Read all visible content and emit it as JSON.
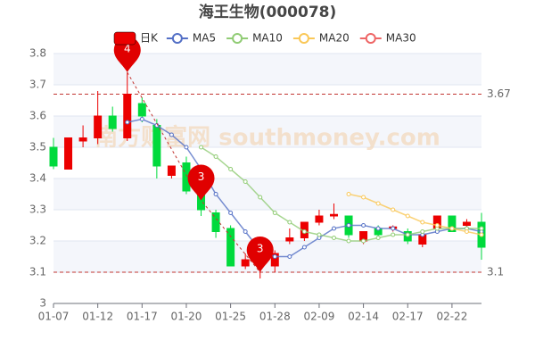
{
  "chart_data": {
    "type": "candlestick",
    "title": "海王生物(000078)",
    "watermark": "南方财富网 southmoney.com",
    "categories": [
      "01-07",
      null,
      null,
      "01-12",
      null,
      null,
      "01-17",
      null,
      null,
      "01-20",
      null,
      null,
      "01-25",
      null,
      null,
      "01-28",
      null,
      null,
      "02-09",
      null,
      null,
      "02-14",
      null,
      null,
      "02-17",
      null,
      null,
      "02-22",
      null,
      null
    ],
    "candles": {
      "name": "日K",
      "up_color": "#ec0000",
      "down_color": "#00da3c",
      "values": [
        [
          3.5,
          3.44,
          3.43,
          3.53
        ],
        [
          3.43,
          3.53,
          3.43,
          3.53
        ],
        [
          3.52,
          3.53,
          3.5,
          3.57
        ],
        [
          3.53,
          3.6,
          3.51,
          3.68
        ],
        [
          3.6,
          3.56,
          3.55,
          3.63
        ],
        [
          3.53,
          3.67,
          3.52,
          3.74
        ],
        [
          3.64,
          3.6,
          3.58,
          3.66
        ],
        [
          3.57,
          3.44,
          3.4,
          3.59
        ],
        [
          3.41,
          3.44,
          3.4,
          3.44
        ],
        [
          3.45,
          3.36,
          3.35,
          3.47
        ],
        [
          3.41,
          3.3,
          3.28,
          3.42
        ],
        [
          3.29,
          3.23,
          3.21,
          3.3
        ],
        [
          3.24,
          3.12,
          3.12,
          3.25
        ],
        [
          3.12,
          3.14,
          3.11,
          3.16
        ],
        [
          3.13,
          3.15,
          3.08,
          3.16
        ],
        [
          3.12,
          3.16,
          3.1,
          3.17
        ],
        [
          3.2,
          3.21,
          3.19,
          3.24
        ],
        [
          3.21,
          3.26,
          3.2,
          3.26
        ],
        [
          3.26,
          3.28,
          3.25,
          3.3
        ],
        [
          3.28,
          3.285,
          3.27,
          3.32
        ],
        [
          3.28,
          3.22,
          3.21,
          3.28
        ],
        [
          3.2,
          3.23,
          3.19,
          3.23
        ],
        [
          3.24,
          3.22,
          3.21,
          3.25
        ],
        [
          3.24,
          3.245,
          3.23,
          3.25
        ],
        [
          3.23,
          3.2,
          3.19,
          3.24
        ],
        [
          3.19,
          3.22,
          3.18,
          3.23
        ],
        [
          3.24,
          3.28,
          3.23,
          3.28
        ],
        [
          3.28,
          3.23,
          3.23,
          3.28
        ],
        [
          3.25,
          3.26,
          3.24,
          3.27
        ],
        [
          3.26,
          3.18,
          3.14,
          3.29
        ]
      ]
    },
    "series": [
      {
        "name": "MA5",
        "color": "#5470c6",
        "values": [
          null,
          null,
          null,
          null,
          null,
          3.58,
          3.59,
          3.57,
          3.54,
          3.5,
          3.43,
          3.35,
          3.29,
          3.23,
          3.17,
          3.15,
          3.15,
          3.18,
          3.21,
          3.24,
          3.25,
          3.25,
          3.24,
          3.24,
          3.22,
          3.22,
          3.23,
          3.24,
          3.24,
          3.23
        ]
      },
      {
        "name": "MA10",
        "color": "#91cc75",
        "values": [
          null,
          null,
          null,
          null,
          null,
          null,
          null,
          null,
          null,
          null,
          3.5,
          3.47,
          3.43,
          3.39,
          3.34,
          3.29,
          3.26,
          3.23,
          3.22,
          3.21,
          3.2,
          3.2,
          3.21,
          3.22,
          3.22,
          3.23,
          3.24,
          3.24,
          3.24,
          3.24
        ]
      },
      {
        "name": "MA20",
        "color": "#fac858",
        "values": [
          null,
          null,
          null,
          null,
          null,
          null,
          null,
          null,
          null,
          null,
          null,
          null,
          null,
          null,
          null,
          null,
          null,
          null,
          null,
          null,
          3.35,
          3.34,
          3.32,
          3.3,
          3.28,
          3.26,
          3.25,
          3.24,
          3.23,
          3.22
        ]
      },
      {
        "name": "MA30",
        "color": "#ee6666",
        "values": [
          null,
          null,
          null,
          null,
          null,
          null,
          null,
          null,
          null,
          null,
          null,
          null,
          null,
          null,
          null,
          null,
          null,
          null,
          null,
          null,
          null,
          null,
          null,
          null,
          null,
          null,
          null,
          null,
          null,
          null
        ]
      }
    ],
    "markers": [
      {
        "category_index": 5,
        "value": 3.74,
        "label": "4"
      },
      {
        "category_index": 10,
        "value": 3.33,
        "label": "3"
      },
      {
        "category_index": 14,
        "value": 3.1,
        "label": "3"
      }
    ],
    "reference_lines": [
      3.67,
      3.1
    ],
    "reference_color": "#c23531",
    "ylim": [
      3,
      3.8
    ],
    "yticks": [
      3,
      3.1,
      3.2,
      3.3,
      3.4,
      3.5,
      3.6,
      3.7,
      3.8
    ],
    "grid": true
  }
}
